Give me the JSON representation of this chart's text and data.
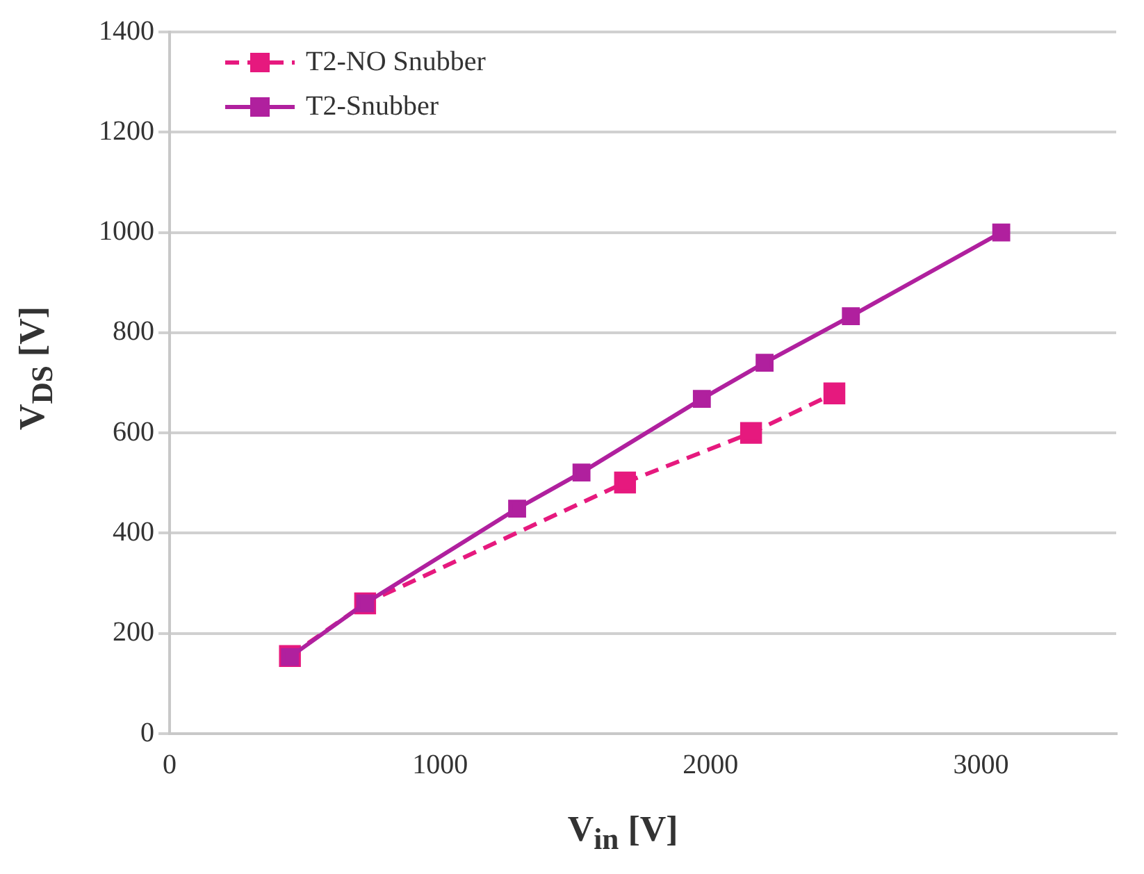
{
  "chart_data": {
    "type": "line",
    "xlabel": "V$_{in}$ [V]",
    "ylabel": "V$_{DS}$ [V]",
    "xlim": [
      0,
      3500
    ],
    "xticks": [
      0,
      1000,
      2000,
      3000
    ],
    "ylim": [
      0,
      1400
    ],
    "yticks": [
      0,
      200,
      400,
      600,
      800,
      1000,
      1200,
      1400
    ],
    "grid": "y",
    "legend": "top left",
    "marker": "square",
    "series": [
      {
        "name": "T2-NO Snubber",
        "color": "#e6197e",
        "line_style": "dashed",
        "x": [
          445,
          723,
          1684,
          2150,
          2458
        ],
        "values": [
          155,
          260,
          501,
          600,
          679
        ]
      },
      {
        "name": "T2-Snubber",
        "color": "#b0209e",
        "line_style": "solid",
        "x": [
          445,
          723,
          1285,
          1523,
          1968,
          2200,
          2519,
          3075
        ],
        "values": [
          153,
          260,
          449,
          521,
          668,
          740,
          833,
          1000
        ]
      }
    ]
  }
}
